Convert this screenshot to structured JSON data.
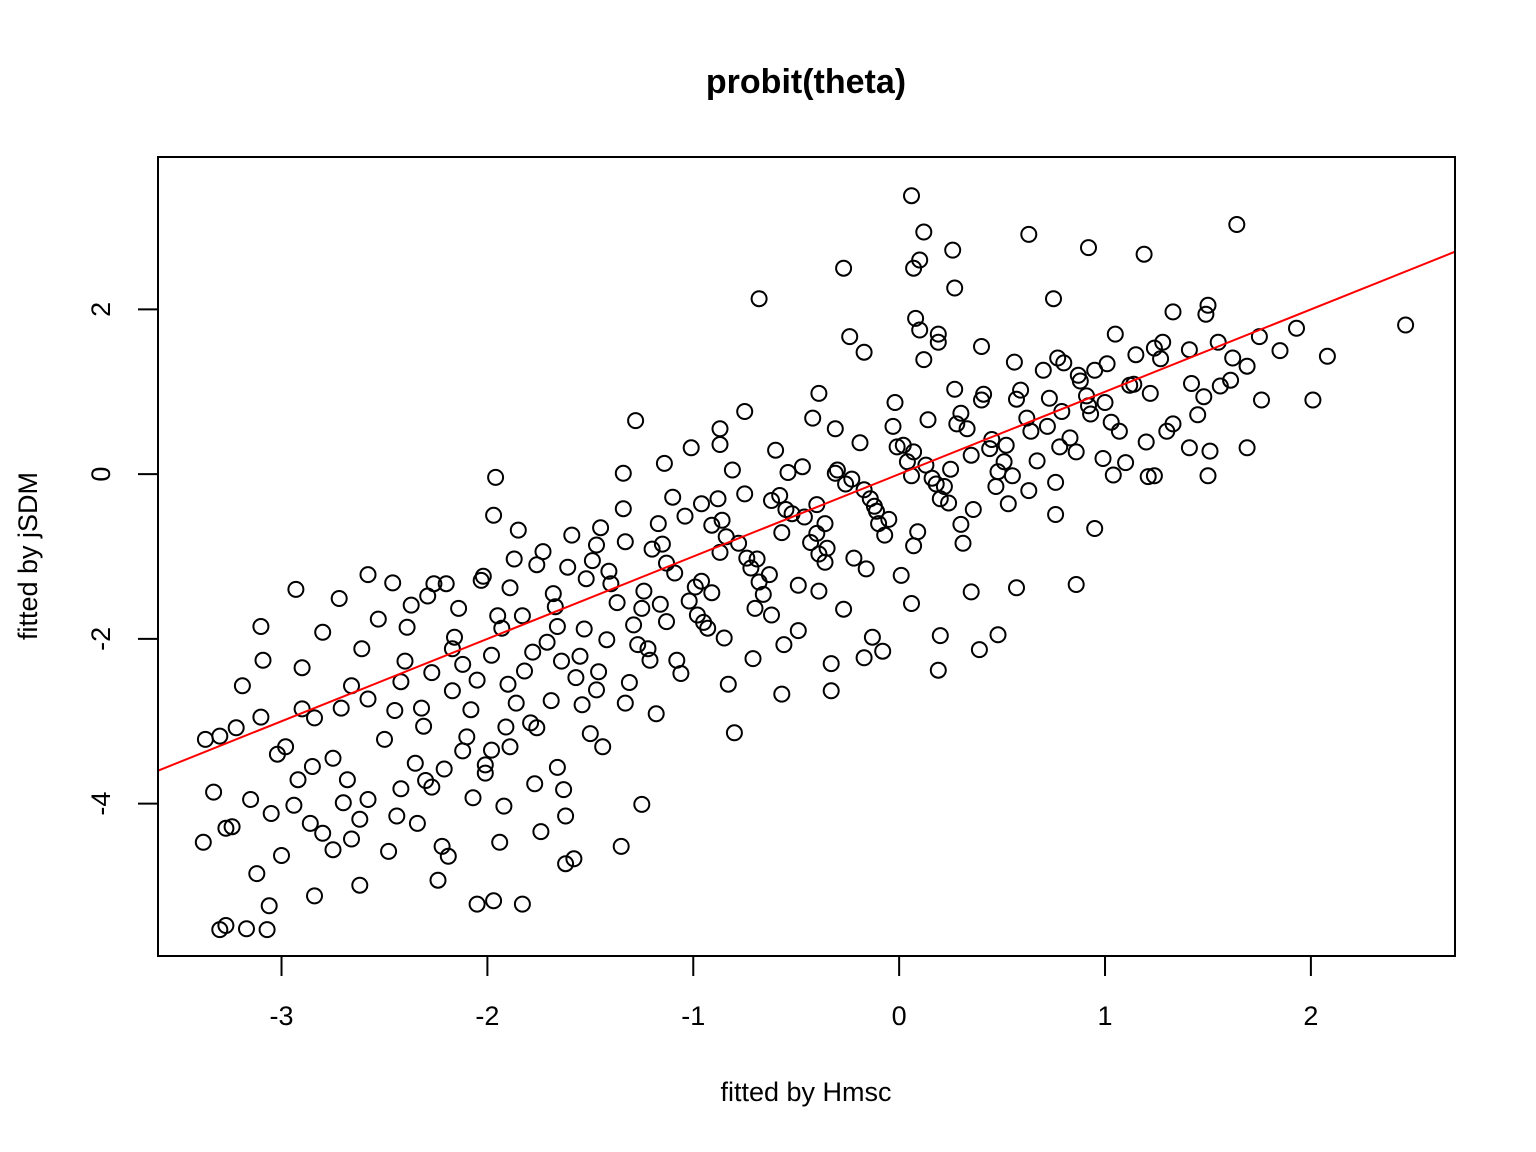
{
  "chart_data": {
    "type": "scatter",
    "title": "probit(theta)",
    "xlabel": "fitted by Hmsc",
    "ylabel": "fitted by jSDM",
    "xlim": [
      -3.6,
      2.7
    ],
    "ylim": [
      -5.85,
      3.85
    ],
    "x_ticks": [
      -3,
      -2,
      -1,
      0,
      1,
      2
    ],
    "y_ticks": [
      -4,
      -2,
      0,
      2
    ],
    "x_tick_labels": [
      "-3",
      "-2",
      "-1",
      "0",
      "1",
      "2"
    ],
    "y_tick_labels": [
      "-4",
      "-2",
      "0",
      "2"
    ],
    "grid": false,
    "legend": "none",
    "colors": {
      "points": "#000000",
      "line": "#ff0000",
      "frame": "#000000"
    },
    "reference_line": {
      "x": [
        -3.6,
        2.7
      ],
      "y": [
        -3.6,
        2.7
      ]
    },
    "points": [
      [
        0.06,
        3.38
      ],
      [
        1.64,
        3.03
      ],
      [
        0.12,
        2.94
      ],
      [
        0.63,
        2.91
      ],
      [
        0.26,
        2.72
      ],
      [
        0.92,
        2.75
      ],
      [
        1.19,
        2.67
      ],
      [
        0.1,
        2.6
      ],
      [
        -0.27,
        2.5
      ],
      [
        0.07,
        2.5
      ],
      [
        0.27,
        2.26
      ],
      [
        -0.68,
        2.13
      ],
      [
        1.49,
        1.94
      ],
      [
        0.75,
        2.13
      ],
      [
        1.93,
        1.77
      ],
      [
        2.46,
        1.81
      ],
      [
        0.08,
        1.89
      ],
      [
        -0.24,
        1.67
      ],
      [
        0.1,
        1.75
      ],
      [
        0.19,
        1.7
      ],
      [
        1.33,
        1.97
      ],
      [
        1.5,
        2.05
      ],
      [
        1.75,
        1.67
      ],
      [
        1.85,
        1.5
      ],
      [
        2.08,
        1.43
      ],
      [
        1.62,
        1.41
      ],
      [
        1.69,
        1.31
      ],
      [
        2.01,
        0.9
      ],
      [
        1.76,
        0.9
      ],
      [
        1.41,
        0.32
      ],
      [
        1.51,
        0.28
      ],
      [
        1.5,
        -0.02
      ],
      [
        1.69,
        0.32
      ],
      [
        -1.28,
        0.65
      ],
      [
        -0.87,
        0.55
      ],
      [
        -0.75,
        0.76
      ],
      [
        -1.01,
        0.32
      ],
      [
        -0.87,
        0.36
      ],
      [
        -1.14,
        0.13
      ],
      [
        -1.96,
        -0.04
      ],
      [
        -1.97,
        -0.5
      ],
      [
        -1.34,
        0.01
      ],
      [
        -0.39,
        0.98
      ],
      [
        0.95,
        -0.66
      ],
      [
        0.86,
        -1.34
      ],
      [
        0.57,
        -1.38
      ],
      [
        0.35,
        -1.43
      ],
      [
        0.48,
        -1.95
      ],
      [
        0.2,
        -1.96
      ],
      [
        -0.13,
        -1.98
      ],
      [
        -0.17,
        -2.23
      ],
      [
        -0.33,
        -2.3
      ],
      [
        -0.33,
        -2.63
      ],
      [
        -0.57,
        -2.67
      ],
      [
        0.19,
        -2.38
      ],
      [
        0.39,
        -2.13
      ],
      [
        0.06,
        -1.57
      ],
      [
        -0.08,
        -2.15
      ],
      [
        -0.8,
        -3.14
      ],
      [
        -1.25,
        -4.01
      ],
      [
        -1.35,
        -4.52
      ],
      [
        -1.58,
        -4.67
      ],
      [
        -1.62,
        -4.73
      ],
      [
        -2.05,
        -5.22
      ],
      [
        -1.97,
        -5.18
      ],
      [
        -1.83,
        -5.22
      ],
      [
        -2.24,
        -4.93
      ],
      [
        -2.62,
        -4.99
      ],
      [
        -2.84,
        -5.12
      ],
      [
        -3.06,
        -5.24
      ],
      [
        -3.17,
        -5.52
      ],
      [
        -3.27,
        -5.48
      ],
      [
        -3.3,
        -5.53
      ],
      [
        -3.07,
        -5.53
      ],
      [
        -3.38,
        -4.47
      ],
      [
        -3.27,
        -4.3
      ],
      [
        -3.33,
        -3.86
      ],
      [
        -3.37,
        -3.22
      ],
      [
        -3.3,
        -3.18
      ],
      [
        -3.22,
        -3.08
      ],
      [
        -3.09,
        -2.26
      ],
      [
        -3.19,
        -2.57
      ],
      [
        -3.1,
        -1.85
      ],
      [
        -2.93,
        -1.4
      ],
      [
        -2.58,
        -1.22
      ],
      [
        -2.46,
        -1.32
      ],
      [
        -2.26,
        -1.33
      ],
      [
        -2.02,
        -1.24
      ],
      [
        -1.87,
        -1.03
      ],
      [
        -1.85,
        -0.68
      ],
      [
        -1.34,
        -0.42
      ],
      [
        -1.1,
        -0.28
      ],
      [
        -0.96,
        -0.36
      ],
      [
        0.47,
        -0.15
      ],
      [
        0.67,
        0.16
      ],
      [
        1.1,
        0.14
      ],
      [
        1.2,
        0.39
      ],
      [
        1.33,
        0.61
      ],
      [
        1.21,
        -0.03
      ],
      [
        0.76,
        -0.49
      ],
      [
        1.24,
        -0.02
      ],
      [
        1.04,
        -0.01
      ],
      [
        1.07,
        0.52
      ],
      [
        1.14,
        1.09
      ],
      [
        1.41,
        1.51
      ],
      [
        1.24,
        1.53
      ],
      [
        1.05,
        1.7
      ],
      [
        1.28,
        1.6
      ],
      [
        0.77,
        1.41
      ],
      [
        0.4,
        1.55
      ],
      [
        0.56,
        1.36
      ],
      [
        0.19,
        1.6
      ],
      [
        0.8,
        1.35
      ],
      [
        1.42,
        1.1
      ],
      [
        1.48,
        0.94
      ],
      [
        1.56,
        1.07
      ],
      [
        0.92,
        0.83
      ],
      [
        0.4,
        0.9
      ],
      [
        -0.02,
        0.87
      ],
      [
        0.12,
        1.39
      ],
      [
        -0.17,
        1.48
      ],
      [
        -0.42,
        0.68
      ],
      [
        -0.81,
        0.05
      ],
      [
        -0.54,
        0.02
      ],
      [
        -0.4,
        -0.37
      ],
      [
        -1.45,
        -0.65
      ],
      [
        -1.59,
        -0.74
      ],
      [
        -1.49,
        -1.05
      ],
      [
        -1.73,
        -0.94
      ],
      [
        -2.2,
        -1.33
      ],
      [
        -2.37,
        -1.59
      ],
      [
        -2.72,
        -1.51
      ],
      [
        -2.8,
        -1.92
      ],
      [
        -2.9,
        -2.35
      ],
      [
        -3.1,
        -2.95
      ],
      [
        -3.15,
        -3.95
      ],
      [
        -3.05,
        -4.12
      ],
      [
        -2.86,
        -4.24
      ],
      [
        -2.75,
        -4.56
      ],
      [
        -2.66,
        -4.43
      ],
      [
        -2.48,
        -4.58
      ],
      [
        -2.22,
        -4.52
      ],
      [
        -2.19,
        -4.64
      ],
      [
        -1.94,
        -4.47
      ],
      [
        -1.74,
        -4.34
      ],
      [
        -1.62,
        -4.15
      ],
      [
        -1.63,
        -3.83
      ],
      [
        -1.77,
        -3.76
      ],
      [
        -1.92,
        -4.03
      ],
      [
        -2.07,
        -3.93
      ],
      [
        -2.34,
        -4.24
      ],
      [
        -2.7,
        -3.99
      ],
      [
        -2.92,
        -3.71
      ],
      [
        -2.98,
        -3.31
      ],
      [
        -2.84,
        -2.96
      ],
      [
        -2.58,
        -2.73
      ],
      [
        -2.27,
        -2.41
      ],
      [
        -1.98,
        -2.2
      ],
      [
        -1.66,
        -1.85
      ],
      [
        -1.37,
        -1.56
      ],
      [
        -1.09,
        -1.2
      ],
      [
        -0.78,
        -0.84
      ],
      [
        -0.46,
        -0.52
      ],
      [
        -0.17,
        -0.19
      ],
      [
        0.13,
        0.11
      ],
      [
        0.45,
        0.42
      ],
      [
        0.79,
        0.76
      ],
      [
        1.12,
        1.08
      ],
      [
        -2.5,
        -3.22
      ],
      [
        -2.31,
        -3.06
      ],
      [
        -2.08,
        -2.86
      ],
      [
        -1.82,
        -2.39
      ],
      [
        -1.55,
        -2.21
      ],
      [
        -1.29,
        -1.83
      ],
      [
        -1.02,
        -1.54
      ],
      [
        -0.72,
        -1.14
      ],
      [
        -0.43,
        -0.83
      ],
      [
        -0.11,
        -0.45
      ],
      [
        0.18,
        -0.12
      ],
      [
        0.51,
        0.15
      ],
      [
        0.83,
        0.44
      ],
      [
        -2.61,
        -2.12
      ],
      [
        -2.39,
        -1.86
      ],
      [
        -2.14,
        -1.63
      ],
      [
        -1.89,
        -1.38
      ],
      [
        -1.61,
        -1.13
      ],
      [
        -1.33,
        -0.82
      ],
      [
        -1.04,
        -0.51
      ],
      [
        -0.75,
        -0.24
      ],
      [
        -0.47,
        0.09
      ],
      [
        -0.19,
        0.38
      ],
      [
        0.14,
        0.66
      ],
      [
        0.41,
        0.97
      ],
      [
        0.7,
        1.26
      ],
      [
        -2.17,
        -2.63
      ],
      [
        -1.71,
        -2.04
      ],
      [
        -1.24,
        -1.42
      ],
      [
        -0.87,
        -0.95
      ],
      [
        -0.52,
        -0.48
      ],
      [
        -0.23,
        -0.06
      ],
      [
        0.07,
        0.27
      ],
      [
        0.33,
        0.55
      ],
      [
        0.62,
        0.68
      ],
      [
        0.91,
        0.95
      ],
      [
        -2.01,
        -3.53
      ],
      [
        -1.79,
        -3.02
      ],
      [
        -1.47,
        -2.62
      ],
      [
        -1.21,
        -2.26
      ],
      [
        -0.93,
        -1.87
      ],
      [
        -0.66,
        -1.46
      ],
      [
        -0.36,
        -1.07
      ],
      [
        -0.07,
        -0.74
      ],
      [
        0.24,
        -0.35
      ],
      [
        0.55,
        -0.02
      ],
      [
        0.86,
        0.27
      ],
      [
        -2.75,
        -3.45
      ],
      [
        -2.45,
        -2.87
      ],
      [
        -2.12,
        -2.31
      ],
      [
        -1.83,
        -1.72
      ],
      [
        -1.52,
        -1.27
      ],
      [
        -1.2,
        -0.91
      ],
      [
        -0.91,
        -0.62
      ],
      [
        -0.62,
        -0.32
      ],
      [
        -0.31,
        0.01
      ],
      [
        0.02,
        0.35
      ],
      [
        0.3,
        0.74
      ],
      [
        0.59,
        1.02
      ],
      [
        0.95,
        1.26
      ],
      [
        1.27,
        1.4
      ],
      [
        -2.94,
        -4.02
      ],
      [
        -2.68,
        -3.71
      ],
      [
        -2.35,
        -3.51
      ],
      [
        -2.1,
        -3.19
      ],
      [
        -1.86,
        -2.78
      ],
      [
        -1.57,
        -2.47
      ],
      [
        -1.27,
        -2.07
      ],
      [
        -0.98,
        -1.71
      ],
      [
        -0.68,
        -1.31
      ],
      [
        -0.39,
        -0.97
      ],
      [
        -0.1,
        -0.6
      ],
      [
        0.2,
        -0.3
      ],
      [
        0.48,
        0.03
      ],
      [
        0.78,
        0.33
      ],
      [
        1.03,
        0.63
      ],
      [
        -1.44,
        -3.31
      ],
      [
        -1.18,
        -2.91
      ],
      [
        -0.83,
        -2.55
      ],
      [
        -0.56,
        -2.07
      ],
      [
        -0.27,
        -1.64
      ],
      [
        0.01,
        -1.23
      ],
      [
        0.31,
        -0.84
      ],
      [
        -2.53,
        -1.76
      ],
      [
        -2.29,
        -1.48
      ],
      [
        -2.03,
        -1.29
      ],
      [
        -1.76,
        -1.1
      ],
      [
        -1.47,
        -0.86
      ],
      [
        -1.17,
        -0.6
      ],
      [
        -0.88,
        -0.3
      ],
      [
        -0.6,
        0.29
      ],
      [
        -0.31,
        0.55
      ],
      [
        -0.03,
        0.58
      ],
      [
        0.27,
        1.03
      ],
      [
        -1.66,
        -3.56
      ],
      [
        -1.5,
        -3.15
      ],
      [
        -1.33,
        -2.78
      ],
      [
        -1.06,
        -2.42
      ],
      [
        -0.71,
        -2.24
      ],
      [
        -0.49,
        -1.9
      ],
      [
        -2.44,
        -4.15
      ],
      [
        -2.27,
        -3.8
      ],
      [
        -2.01,
        -3.63
      ],
      [
        -1.89,
        -3.31
      ],
      [
        -2.58,
        -3.95
      ],
      [
        -2.85,
        -3.55
      ],
      [
        -3.02,
        -3.4
      ],
      [
        -2.71,
        -2.84
      ],
      [
        -2.42,
        -2.52
      ],
      [
        -2.17,
        -2.12
      ],
      [
        -1.93,
        -1.87
      ],
      [
        -1.67,
        -1.61
      ],
      [
        -1.4,
        -1.33
      ],
      [
        -1.13,
        -1.08
      ],
      [
        -0.84,
        -0.76
      ],
      [
        -0.55,
        -0.43
      ],
      [
        -0.26,
        -0.12
      ],
      [
        0.04,
        0.15
      ],
      [
        0.35,
        0.23
      ],
      [
        0.64,
        0.52
      ],
      [
        0.93,
        0.73
      ],
      [
        1.22,
        0.98
      ],
      [
        -1.16,
        -1.58
      ],
      [
        -0.96,
        -1.3
      ],
      [
        -0.74,
        -1.02
      ],
      [
        -0.57,
        -0.71
      ],
      [
        -0.36,
        -0.6
      ],
      [
        -0.14,
        -0.3
      ],
      [
        0.06,
        -0.02
      ],
      [
        0.25,
        0.06
      ],
      [
        -1.9,
        -2.55
      ],
      [
        -1.64,
        -2.27
      ],
      [
        -1.42,
        -2.01
      ],
      [
        -1.13,
        -1.79
      ],
      [
        -0.91,
        -1.44
      ],
      [
        -0.63,
        -1.22
      ],
      [
        -0.35,
        -0.9
      ],
      [
        -0.05,
        -0.55
      ],
      [
        0.22,
        -0.15
      ],
      [
        0.52,
        0.35
      ],
      [
        0.73,
        0.92
      ],
      [
        0.88,
        1.13
      ],
      [
        1.01,
        1.34
      ],
      [
        -2.32,
        -2.84
      ],
      [
        -2.05,
        -2.5
      ],
      [
        -1.78,
        -2.16
      ],
      [
        -1.53,
        -1.88
      ],
      [
        -1.25,
        -1.63
      ],
      [
        -0.99,
        -1.37
      ],
      [
        -0.69,
        -1.03
      ],
      [
        -0.4,
        -0.72
      ],
      [
        -0.12,
        -0.39
      ],
      [
        0.16,
        -0.05
      ],
      [
        0.44,
        0.31
      ],
      [
        0.72,
        0.58
      ],
      [
        1.0,
        0.87
      ],
      [
        -2.9,
        -2.85
      ],
      [
        -2.66,
        -2.57
      ],
      [
        -2.4,
        -2.27
      ],
      [
        -2.16,
        -1.98
      ],
      [
        -1.95,
        -1.72
      ],
      [
        -1.68,
        -1.45
      ],
      [
        -1.41,
        -1.18
      ],
      [
        -1.15,
        -0.85
      ],
      [
        -0.86,
        -0.56
      ],
      [
        -0.58,
        -0.26
      ],
      [
        -0.3,
        0.05
      ],
      [
        -0.01,
        0.33
      ],
      [
        0.28,
        0.61
      ],
      [
        0.57,
        0.91
      ],
      [
        0.87,
        1.2
      ],
      [
        1.15,
        1.45
      ],
      [
        -2.3,
        -3.72
      ],
      [
        -2.12,
        -3.36
      ],
      [
        -1.91,
        -3.07
      ],
      [
        -1.69,
        -2.75
      ],
      [
        -1.46,
        -2.4
      ],
      [
        -1.22,
        -2.12
      ],
      [
        -0.95,
        -1.8
      ],
      [
        -0.7,
        -1.63
      ],
      [
        -0.49,
        -1.35
      ],
      [
        -0.22,
        -1.02
      ],
      [
        0.09,
        -0.7
      ],
      [
        0.36,
        -0.43
      ],
      [
        0.63,
        -0.2
      ],
      [
        -3.24,
        -4.28
      ],
      [
        -3.12,
        -4.85
      ],
      [
        -3.0,
        -4.63
      ],
      [
        -2.8,
        -4.36
      ],
      [
        -2.62,
        -4.19
      ],
      [
        -2.42,
        -3.82
      ],
      [
        -2.21,
        -3.58
      ],
      [
        -1.98,
        -3.35
      ],
      [
        -1.76,
        -3.08
      ],
      [
        -1.54,
        -2.8
      ],
      [
        -1.31,
        -2.53
      ],
      [
        -1.08,
        -2.26
      ],
      [
        -0.85,
        -1.99
      ],
      [
        -0.62,
        -1.71
      ],
      [
        -0.39,
        -1.42
      ],
      [
        -0.16,
        -1.15
      ],
      [
        0.07,
        -0.87
      ],
      [
        0.3,
        -0.61
      ],
      [
        0.53,
        -0.36
      ],
      [
        0.76,
        -0.1
      ],
      [
        0.99,
        0.19
      ],
      [
        1.3,
        0.52
      ],
      [
        1.45,
        0.72
      ],
      [
        1.61,
        1.14
      ],
      [
        1.55,
        1.6
      ]
    ]
  }
}
